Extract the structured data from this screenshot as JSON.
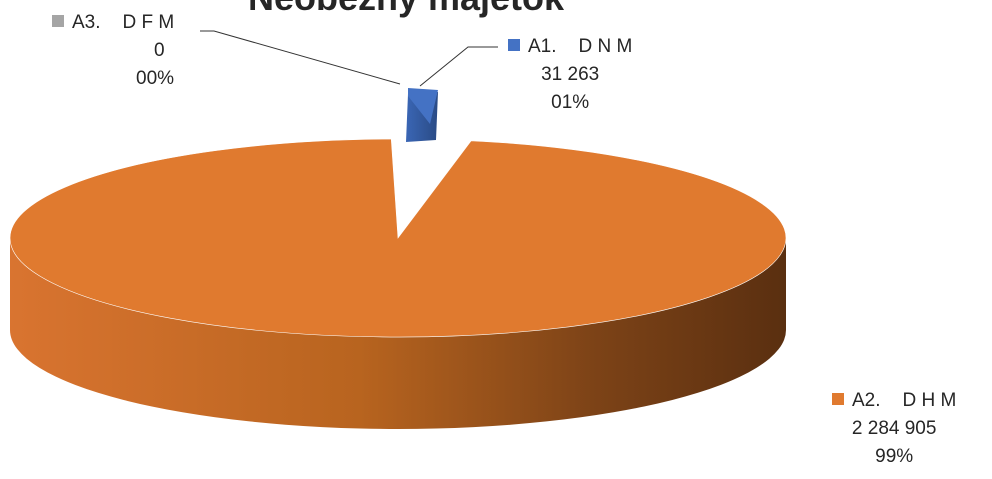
{
  "chart_data": {
    "type": "pie",
    "title": "Neobežný majetok",
    "slices": [
      {
        "code": "A1.",
        "name": "D N M",
        "value": 31263,
        "value_label": "31 263",
        "percent_label": "01%",
        "color": "#4472C4"
      },
      {
        "code": "A2.",
        "name": "D H M",
        "value": 2284905,
        "value_label": "2 284 905",
        "percent_label": "99%",
        "color": "#E07A2F"
      },
      {
        "code": "A3.",
        "name": "D F M",
        "value": 0,
        "value_label": "0",
        "percent_label": "00%",
        "color": "#A5A5A5"
      }
    ],
    "style": "3d-exploded"
  }
}
